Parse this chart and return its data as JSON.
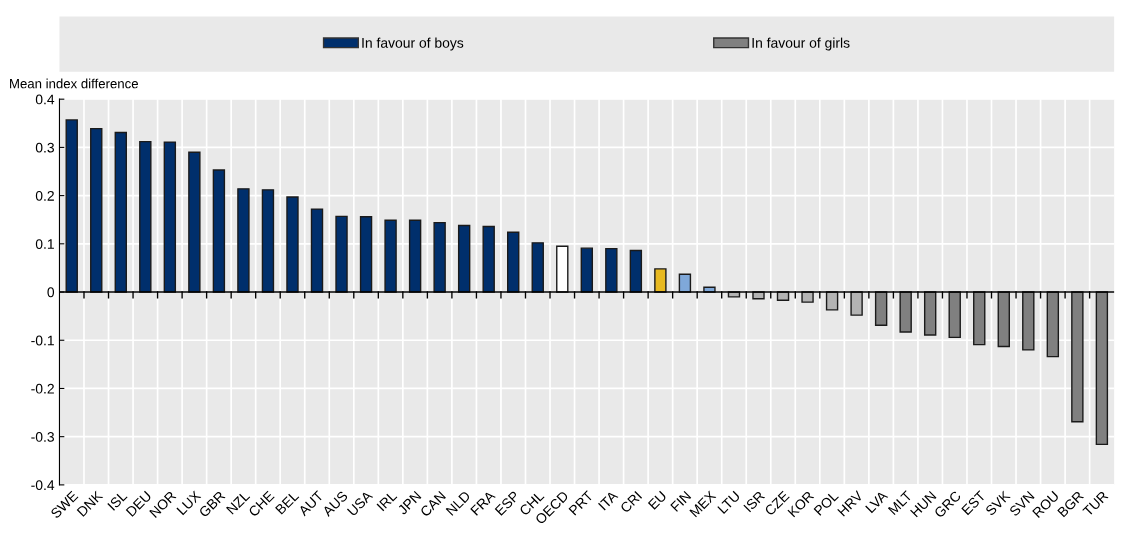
{
  "chart_data": {
    "type": "bar",
    "ylabel": "Mean index difference",
    "categories": [
      "SWE",
      "DNK",
      "ISL",
      "DEU",
      "NOR",
      "LUX",
      "GBR",
      "NZL",
      "CHE",
      "BEL",
      "AUT",
      "AUS",
      "USA",
      "IRL",
      "JPN",
      "CAN",
      "NLD",
      "FRA",
      "ESP",
      "CHL",
      "OECD",
      "PRT",
      "ITA",
      "CRI",
      "EU",
      "FIN",
      "MEX",
      "LTU",
      "ISR",
      "CZE",
      "KOR",
      "POL",
      "HRV",
      "LVA",
      "MLT",
      "HUN",
      "GRC",
      "EST",
      "SVK",
      "SVN",
      "ROU",
      "BGR",
      "TUR"
    ],
    "series": [
      {
        "name": "In favour of boys",
        "color": "#002f6c",
        "values": [
          0.357,
          0.339,
          0.331,
          0.312,
          0.311,
          0.29,
          0.253,
          0.214,
          0.212,
          0.197,
          0.172,
          0.157,
          0.156,
          0.149,
          0.149,
          0.144,
          0.138,
          0.136,
          0.124,
          0.102,
          0.095,
          0.091,
          0.09,
          0.086,
          0.048,
          0.037,
          0.01,
          null,
          null,
          null,
          null,
          null,
          null,
          null,
          null,
          null,
          null,
          null,
          null,
          null,
          null,
          null,
          null
        ],
        "colors": [
          "#002f6c",
          "#002f6c",
          "#002f6c",
          "#002f6c",
          "#002f6c",
          "#002f6c",
          "#002f6c",
          "#002f6c",
          "#002f6c",
          "#002f6c",
          "#002f6c",
          "#002f6c",
          "#002f6c",
          "#002f6c",
          "#002f6c",
          "#002f6c",
          "#002f6c",
          "#002f6c",
          "#002f6c",
          "#002f6c",
          "#ffffff",
          "#002f6c",
          "#002f6c",
          "#002f6c",
          "#e8b920",
          "#7fa8d9",
          "#7fa8d9",
          null,
          null,
          null,
          null,
          null,
          null,
          null,
          null,
          null,
          null,
          null,
          null,
          null,
          null,
          null,
          null
        ]
      },
      {
        "name": "In favour of girls",
        "color": "#808080",
        "values": [
          null,
          null,
          null,
          null,
          null,
          null,
          null,
          null,
          null,
          null,
          null,
          null,
          null,
          null,
          null,
          null,
          null,
          null,
          null,
          null,
          null,
          null,
          null,
          null,
          null,
          null,
          null,
          -0.01,
          -0.014,
          -0.017,
          -0.021,
          -0.037,
          -0.048,
          -0.069,
          -0.083,
          -0.089,
          -0.094,
          -0.109,
          -0.113,
          -0.12,
          -0.134,
          -0.269,
          -0.316
        ],
        "colors": [
          null,
          null,
          null,
          null,
          null,
          null,
          null,
          null,
          null,
          null,
          null,
          null,
          null,
          null,
          null,
          null,
          null,
          null,
          null,
          null,
          null,
          null,
          null,
          null,
          null,
          null,
          null,
          "#b3b3b3",
          "#b3b3b3",
          "#b3b3b3",
          "#b3b3b3",
          "#b3b3b3",
          "#b3b3b3",
          "#808080",
          "#808080",
          "#808080",
          "#808080",
          "#808080",
          "#808080",
          "#808080",
          "#808080",
          "#808080",
          "#808080"
        ]
      }
    ],
    "ylim": [
      -0.4,
      0.4
    ],
    "yticks": [
      -0.4,
      -0.3,
      -0.2,
      -0.1,
      0,
      0.1,
      0.2,
      0.3,
      0.4
    ],
    "grid": true,
    "legend": "top"
  }
}
